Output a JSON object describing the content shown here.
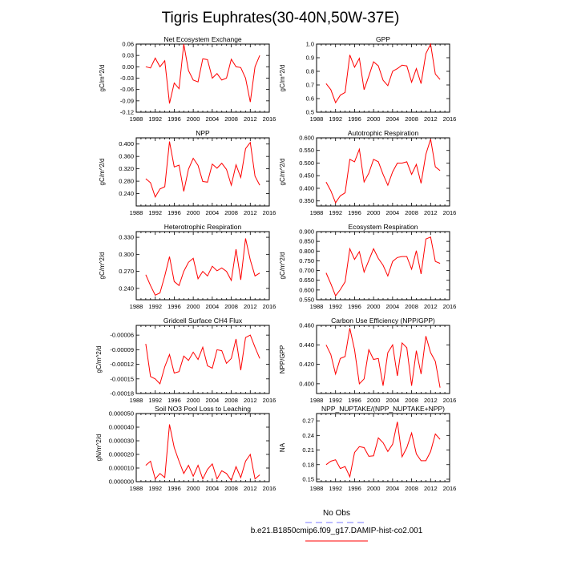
{
  "title": "Tigris Euphrates(30-40N,50W-37E)",
  "legend": {
    "entries": [
      {
        "label": "No Obs",
        "color": "#7b7bff",
        "dash": true
      },
      {
        "label": "b.e21.B1850cmip6.f09_g17.DAMIP-hist-co2.001",
        "color": "#ff0000",
        "dash": false
      }
    ]
  },
  "chart_data": [
    {
      "type": "line",
      "title": "Net Ecosystem Exchange",
      "ylabel": "gC/m^2/d",
      "xlim": [
        1988,
        2016
      ],
      "ylim": [
        -0.12,
        0.06
      ],
      "xticks": [
        "1988",
        "1992",
        "1996",
        "2000",
        "2004",
        "2008",
        "2012",
        "2016"
      ],
      "yticks": [
        "0.06",
        "0.03",
        "0.00",
        "-0.03",
        "-0.06",
        "-0.09",
        "-0.12"
      ],
      "x": [
        1990,
        1991,
        1992,
        1993,
        1994,
        1995,
        1996,
        1997,
        1998,
        1999,
        2000,
        2001,
        2002,
        2003,
        2004,
        2005,
        2006,
        2007,
        2008,
        2009,
        2010,
        2011,
        2012,
        2013,
        2014
      ],
      "series": [
        {
          "color": "#ff0000",
          "values": [
            0.0,
            -0.003,
            0.023,
            0.0,
            0.016,
            -0.097,
            -0.043,
            -0.058,
            0.06,
            -0.01,
            -0.035,
            -0.04,
            0.021,
            0.019,
            -0.03,
            -0.018,
            -0.035,
            -0.03,
            0.02,
            0.0,
            -0.002,
            -0.03,
            -0.093,
            0.0,
            0.03
          ]
        }
      ]
    },
    {
      "type": "line",
      "title": "GPP",
      "ylabel": "gC/m^2/d",
      "xlim": [
        1988,
        2016
      ],
      "ylim": [
        0.5,
        1.0
      ],
      "xticks": [
        "1988",
        "1992",
        "1996",
        "2000",
        "2004",
        "2008",
        "2012",
        "2016"
      ],
      "yticks": [
        "1.0",
        "0.9",
        "0.8",
        "0.7",
        "0.6",
        "0.5"
      ],
      "x": [
        1990,
        1991,
        1992,
        1993,
        1994,
        1995,
        1996,
        1997,
        1998,
        1999,
        2000,
        2001,
        2002,
        2003,
        2004,
        2005,
        2006,
        2007,
        2008,
        2009,
        2010,
        2011,
        2012,
        2013,
        2014
      ],
      "series": [
        {
          "color": "#ff0000",
          "values": [
            0.71,
            0.665,
            0.57,
            0.625,
            0.645,
            0.92,
            0.83,
            0.895,
            0.665,
            0.765,
            0.87,
            0.84,
            0.735,
            0.695,
            0.8,
            0.82,
            0.845,
            0.84,
            0.72,
            0.82,
            0.71,
            0.93,
            1.0,
            0.78,
            0.74
          ]
        }
      ]
    },
    {
      "type": "line",
      "title": "NPP",
      "ylabel": "gC/m^2/d",
      "xlim": [
        1988,
        2016
      ],
      "ylim": [
        0.2,
        0.42
      ],
      "xticks": [
        "1988",
        "1992",
        "1996",
        "2000",
        "2004",
        "2008",
        "2012",
        "2016"
      ],
      "yticks": [
        "0.400",
        "0.360",
        "0.320",
        "0.280",
        "0.240"
      ],
      "x": [
        1990,
        1991,
        1992,
        1993,
        1994,
        1995,
        1996,
        1997,
        1998,
        1999,
        2000,
        2001,
        2002,
        2003,
        2004,
        2005,
        2006,
        2007,
        2008,
        2009,
        2010,
        2011,
        2012,
        2013,
        2014
      ],
      "series": [
        {
          "color": "#ff0000",
          "values": [
            0.288,
            0.275,
            0.229,
            0.255,
            0.262,
            0.408,
            0.326,
            0.332,
            0.247,
            0.319,
            0.354,
            0.331,
            0.279,
            0.277,
            0.335,
            0.322,
            0.338,
            0.318,
            0.267,
            0.333,
            0.292,
            0.385,
            0.405,
            0.296,
            0.267
          ]
        }
      ]
    },
    {
      "type": "line",
      "title": "Autotrophic Respiration",
      "ylabel": "gC/m^2/d",
      "xlim": [
        1988,
        2016
      ],
      "ylim": [
        0.33,
        0.6
      ],
      "xticks": [
        "1988",
        "1992",
        "1996",
        "2000",
        "2004",
        "2008",
        "2012",
        "2016"
      ],
      "yticks": [
        "0.600",
        "0.550",
        "0.500",
        "0.450",
        "0.400",
        "0.350"
      ],
      "x": [
        1990,
        1991,
        1992,
        1993,
        1994,
        1995,
        1996,
        1997,
        1998,
        1999,
        2000,
        2001,
        2002,
        2003,
        2004,
        2005,
        2006,
        2007,
        2008,
        2009,
        2010,
        2011,
        2012,
        2013,
        2014
      ],
      "series": [
        {
          "color": "#ff0000",
          "values": [
            0.425,
            0.39,
            0.343,
            0.37,
            0.382,
            0.515,
            0.505,
            0.555,
            0.425,
            0.46,
            0.515,
            0.505,
            0.455,
            0.412,
            0.465,
            0.5,
            0.5,
            0.505,
            0.455,
            0.495,
            0.42,
            0.535,
            0.595,
            0.485,
            0.47
          ]
        }
      ]
    },
    {
      "type": "line",
      "title": "Heterotrophic Respiration",
      "ylabel": "gC/m^2/d",
      "xlim": [
        1988,
        2016
      ],
      "ylim": [
        0.22,
        0.34
      ],
      "xticks": [
        "1988",
        "1992",
        "1996",
        "2000",
        "2004",
        "2008",
        "2012",
        "2016"
      ],
      "yticks": [
        "0.330",
        "0.300",
        "0.270",
        "0.240"
      ],
      "x": [
        1990,
        1991,
        1992,
        1993,
        1994,
        1995,
        1996,
        1997,
        1998,
        1999,
        2000,
        2001,
        2002,
        2003,
        2004,
        2005,
        2006,
        2007,
        2008,
        2009,
        2010,
        2011,
        2012,
        2013,
        2014
      ],
      "series": [
        {
          "color": "#ff0000",
          "values": [
            0.264,
            0.245,
            0.228,
            0.232,
            0.262,
            0.296,
            0.252,
            0.245,
            0.27,
            0.286,
            0.293,
            0.257,
            0.27,
            0.262,
            0.279,
            0.271,
            0.276,
            0.27,
            0.254,
            0.309,
            0.255,
            0.328,
            0.29,
            0.262,
            0.267
          ]
        }
      ]
    },
    {
      "type": "line",
      "title": "Ecosystem Respiration",
      "ylabel": "gC/m^2/d",
      "xlim": [
        1988,
        2016
      ],
      "ylim": [
        0.55,
        0.9
      ],
      "xticks": [
        "1988",
        "1992",
        "1996",
        "2000",
        "2004",
        "2008",
        "2012",
        "2016"
      ],
      "yticks": [
        "0.900",
        "0.850",
        "0.800",
        "0.750",
        "0.700",
        "0.650",
        "0.600",
        "0.550"
      ],
      "x": [
        1990,
        1991,
        1992,
        1993,
        1994,
        1995,
        1996,
        1997,
        1998,
        1999,
        2000,
        2001,
        2002,
        2003,
        2004,
        2005,
        2006,
        2007,
        2008,
        2009,
        2010,
        2011,
        2012,
        2013,
        2014
      ],
      "series": [
        {
          "color": "#ff0000",
          "values": [
            0.688,
            0.632,
            0.57,
            0.602,
            0.642,
            0.812,
            0.757,
            0.797,
            0.692,
            0.752,
            0.812,
            0.762,
            0.727,
            0.672,
            0.747,
            0.767,
            0.772,
            0.772,
            0.707,
            0.802,
            0.682,
            0.862,
            0.872,
            0.747,
            0.737
          ]
        }
      ]
    },
    {
      "type": "line",
      "title": "Gridcell Surface CH4 Flux",
      "ylabel": "gC/m^2/d",
      "xlim": [
        1988,
        2016
      ],
      "ylim": [
        -0.00018,
        -4e-05
      ],
      "xticks": [
        "1988",
        "1992",
        "1996",
        "2000",
        "2004",
        "2008",
        "2012",
        "2016"
      ],
      "yticks": [
        "-0.00006",
        "-0.00009",
        "-0.00012",
        "-0.00015",
        "-0.00018"
      ],
      "x": [
        1990,
        1991,
        1992,
        1993,
        1994,
        1995,
        1996,
        1997,
        1998,
        1999,
        2000,
        2001,
        2002,
        2003,
        2004,
        2005,
        2006,
        2007,
        2008,
        2009,
        2010,
        2011,
        2012,
        2013,
        2014
      ],
      "series": [
        {
          "color": "#ff0000",
          "values": [
            -7.8e-05,
            -0.000145,
            -0.00015,
            -0.00016,
            -0.000125,
            -0.0001,
            -0.000138,
            -0.000135,
            -0.000103,
            -0.000112,
            -9.5e-05,
            -0.00011,
            -8.5e-05,
            -0.000123,
            -0.000128,
            -9e-05,
            -9.2e-05,
            -0.000118,
            -0.000108,
            -6.8e-05,
            -0.000132,
            -6.5e-05,
            -6e-05,
            -8.5e-05,
            -0.000108
          ]
        }
      ]
    },
    {
      "type": "line",
      "title": "Carbon Use Efficiency (NPP/GPP)",
      "ylabel": "NPP/GPP",
      "xlim": [
        1988,
        2016
      ],
      "ylim": [
        0.39,
        0.46
      ],
      "xticks": [
        "1988",
        "1992",
        "1996",
        "2000",
        "2004",
        "2008",
        "2012",
        "2016"
      ],
      "yticks": [
        "0.460",
        "0.440",
        "0.420",
        "0.400"
      ],
      "x": [
        1990,
        1991,
        1992,
        1993,
        1994,
        1995,
        1996,
        1997,
        1998,
        1999,
        2000,
        2001,
        2002,
        2003,
        2004,
        2005,
        2006,
        2007,
        2008,
        2009,
        2010,
        2011,
        2012,
        2013,
        2014
      ],
      "series": [
        {
          "color": "#ff0000",
          "values": [
            0.44,
            0.43,
            0.41,
            0.426,
            0.428,
            0.457,
            0.435,
            0.4,
            0.405,
            0.435,
            0.425,
            0.426,
            0.398,
            0.432,
            0.44,
            0.408,
            0.442,
            0.437,
            0.398,
            0.434,
            0.41,
            0.449,
            0.432,
            0.423,
            0.396
          ]
        }
      ]
    },
    {
      "type": "line",
      "title": "Soil NO3 Pool Loss to Leaching",
      "ylabel": "gN/m^2/d",
      "xlim": [
        1988,
        2016
      ],
      "ylim": [
        0.0,
        5e-05
      ],
      "xticks": [
        "1988",
        "1992",
        "1996",
        "2000",
        "2004",
        "2008",
        "2012",
        "2016"
      ],
      "yticks": [
        "0.000050",
        "0.000040",
        "0.000030",
        "0.000020",
        "0.000010",
        "0.000000"
      ],
      "x": [
        1990,
        1991,
        1992,
        1993,
        1994,
        1995,
        1996,
        1997,
        1998,
        1999,
        2000,
        2001,
        2002,
        2003,
        2004,
        2005,
        2006,
        2007,
        2008,
        2009,
        2010,
        2011,
        2012,
        2013,
        2014
      ],
      "series": [
        {
          "color": "#ff0000",
          "values": [
            1.2e-05,
            1.5e-05,
            2e-06,
            6e-06,
            3e-06,
            4.2e-05,
            2.5e-05,
            1.5e-05,
            6e-06,
            1.2e-05,
            4e-06,
            1.2e-05,
            2e-06,
            9e-06,
            1.3e-05,
            2e-06,
            8e-06,
            6e-06,
            1e-06,
            1.1e-05,
            3e-06,
            1.5e-05,
            2e-05,
            2e-06,
            5e-06
          ]
        }
      ]
    },
    {
      "type": "line",
      "title": "NPP_NUPTAKE/(NPP_NUPTAKE+NPP)",
      "ylabel": "NA",
      "xlim": [
        1988,
        2016
      ],
      "ylim": [
        0.145,
        0.285
      ],
      "xticks": [
        "1988",
        "1992",
        "1996",
        "2000",
        "2004",
        "2008",
        "2012",
        "2016"
      ],
      "yticks": [
        "0.27",
        "0.24",
        "0.21",
        "0.18",
        "0.15"
      ],
      "x": [
        1990,
        1991,
        1992,
        1993,
        1994,
        1995,
        1996,
        1997,
        1998,
        1999,
        2000,
        2001,
        2002,
        2003,
        2004,
        2005,
        2006,
        2007,
        2008,
        2009,
        2010,
        2011,
        2012,
        2013,
        2014
      ],
      "series": [
        {
          "color": "#ff0000",
          "values": [
            0.18,
            0.187,
            0.19,
            0.172,
            0.176,
            0.155,
            0.205,
            0.217,
            0.215,
            0.197,
            0.198,
            0.235,
            0.225,
            0.207,
            0.222,
            0.268,
            0.196,
            0.215,
            0.245,
            0.202,
            0.188,
            0.188,
            0.207,
            0.243,
            0.232
          ]
        }
      ]
    }
  ]
}
